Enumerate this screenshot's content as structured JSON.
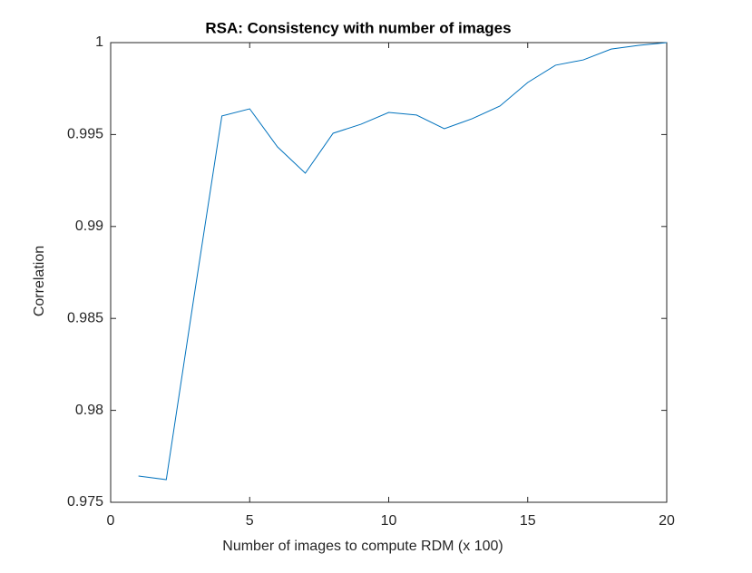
{
  "chart_data": {
    "type": "line",
    "title": "RSA: Consistency with number of images",
    "x_label": "Number of images to compute RDM (x 100)",
    "y_label": "Correlation",
    "x": [
      1,
      2,
      3,
      4,
      5,
      6,
      7,
      8,
      9,
      10,
      11,
      12,
      13,
      14,
      15,
      16,
      17,
      18,
      19,
      20
    ],
    "series": [
      {
        "color": "#0072bd",
        "values": [
          0.97643,
          0.97623,
          0.9862,
          0.99601,
          0.9964,
          0.99433,
          0.9929,
          0.99507,
          0.99556,
          0.9962,
          0.99606,
          0.99532,
          0.99586,
          0.99655,
          0.99783,
          0.99877,
          0.99906,
          0.99965,
          0.99985,
          1.0
        ]
      }
    ],
    "xlim": [
      0,
      20
    ],
    "xticks": [
      0,
      5,
      10,
      15,
      20
    ],
    "ylim": [
      0.975,
      1
    ],
    "yticks": [
      0.975,
      0.98,
      0.985,
      0.99,
      0.995,
      1
    ],
    "grid": false
  }
}
